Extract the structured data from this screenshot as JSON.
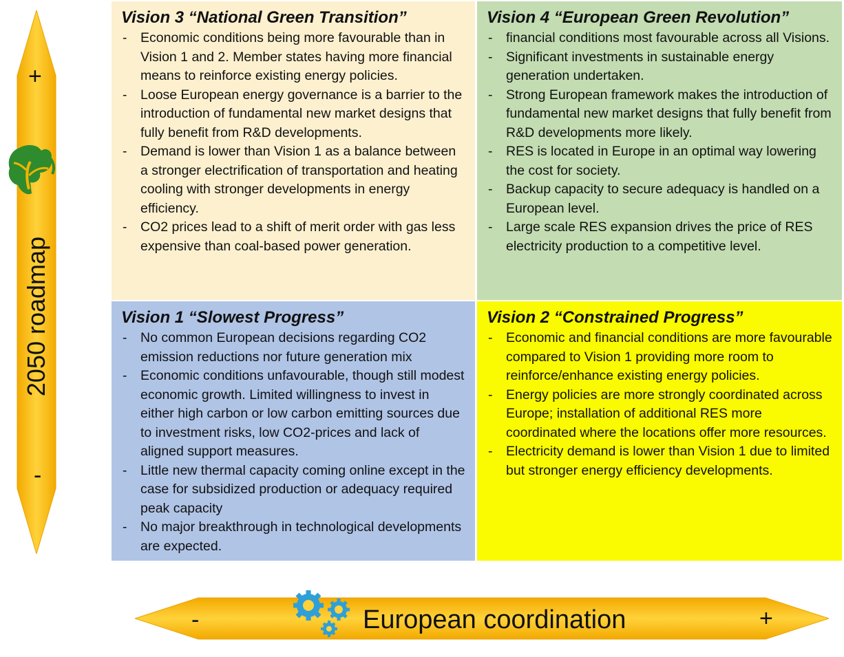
{
  "vertical_axis": {
    "label": "2050 roadmap",
    "plus": "+",
    "minus": "-"
  },
  "horizontal_axis": {
    "label": "European coordination",
    "plus": "+",
    "minus": "-"
  },
  "icons": {
    "vertical": "tree-icon",
    "horizontal": "gears-icon"
  },
  "colors": {
    "vision3": "#fdf0cf",
    "vision4": "#c3dcb2",
    "vision1": "#b0c4e6",
    "vision2": "#fafa00",
    "arrow": "#f5b800"
  },
  "vision3": {
    "title": "Vision 3 “National Green Transition”",
    "bullets": [
      "Economic conditions being more favourable than in Vision 1 and 2. Member states having more financial means to reinforce existing energy policies.",
      "Loose European energy governance is a barrier to the introduction of fundamental new market designs that fully benefit from R&D developments.",
      "Demand is lower than Vision 1 as a balance between a stronger electrification of transportation and heating cooling with stronger developments in energy efficiency.",
      "CO2 prices lead to a shift of merit order with gas less expensive than coal-based power generation."
    ]
  },
  "vision4": {
    "title": "Vision 4 “European Green Revolution”",
    "bullets": [
      "financial conditions most favourable across all Visions.",
      "Significant investments in sustainable energy generation undertaken.",
      "Strong European framework makes the introduction of fundamental new market designs that fully benefit from R&D developments more likely.",
      "RES is located in Europe in an optimal way lowering the cost for society.",
      "Backup capacity to secure adequacy is handled on a European level.",
      "Large scale RES expansion drives the price of RES electricity production to a competitive level."
    ]
  },
  "vision1": {
    "title": "Vision 1 “Slowest Progress”",
    "bullets": [
      "No common European decisions regarding CO2 emission reductions nor future generation mix",
      "Economic conditions unfavourable, though still modest economic growth. Limited willingness to invest in either high carbon or low carbon emitting sources due to investment risks, low CO2-prices and lack of aligned support measures.",
      "Little new thermal capacity coming online except in the case for subsidized production or adequacy required peak capacity",
      "No major breakthrough in technological developments are expected."
    ]
  },
  "vision2": {
    "title": "Vision 2 “Constrained Progress”",
    "bullets": [
      "Economic and financial conditions are more favourable compared to Vision 1 providing more room to reinforce/enhance existing energy policies.",
      "Energy policies are more strongly coordinated across Europe; installation of additional RES more coordinated where the locations offer more resources.",
      "Electricity demand is lower than Vision 1 due to limited but stronger energy efficiency developments."
    ]
  }
}
